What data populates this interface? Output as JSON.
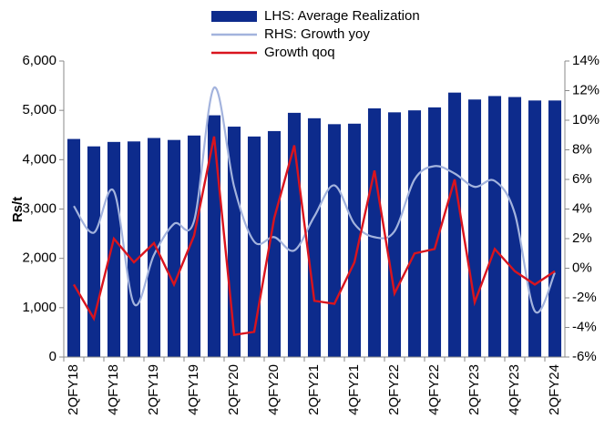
{
  "chart_data": {
    "type": "bar-line",
    "y_label": "Rs/t",
    "categories": [
      "2QFY18",
      null,
      "4QFY18",
      null,
      "2QFY19",
      null,
      "4QFY19",
      null,
      "2QFY20",
      null,
      "4QFY20",
      null,
      "2QFY21",
      null,
      "4QFY21",
      null,
      "2QFY22",
      null,
      "4QFY22",
      null,
      "2QFY23",
      null,
      "4QFY23",
      null,
      "2QFY24"
    ],
    "series": [
      {
        "name": "LHS: Average Realization",
        "type": "bar",
        "color": "#0d2b8c",
        "values": [
          4420,
          4270,
          4360,
          4370,
          4440,
          4400,
          4490,
          4900,
          4670,
          4470,
          4580,
          4950,
          4840,
          4720,
          4730,
          5040,
          4960,
          5000,
          5060,
          5360,
          5220,
          5290,
          5270,
          5200,
          5200
        ]
      },
      {
        "name": "RHS: Growth yoy",
        "type": "line",
        "axis": "y2",
        "color": "#a3b3dd",
        "smooth": true,
        "values": [
          4.2,
          2.4,
          5.2,
          -2.4,
          0.9,
          3.0,
          3.2,
          12.2,
          5.5,
          1.8,
          2.1,
          1.2,
          3.5,
          5.6,
          3.0,
          2.1,
          2.5,
          6.0,
          6.9,
          6.4,
          5.5,
          5.9,
          3.7,
          -2.9,
          -0.3
        ]
      },
      {
        "name": "Growth qoq",
        "type": "line",
        "axis": "y2",
        "color": "#d9141e",
        "smooth": false,
        "values": [
          -1.1,
          -3.4,
          2.0,
          0.4,
          1.7,
          -1.1,
          2.2,
          8.9,
          -4.5,
          -4.3,
          3.4,
          8.3,
          -2.2,
          -2.4,
          0.4,
          6.6,
          -1.7,
          1.0,
          1.3,
          6.0,
          -2.3,
          1.3,
          -0.2,
          -1.1,
          -0.2
        ]
      }
    ],
    "ylim": [
      0,
      6000
    ],
    "yticks": [
      0,
      {
        "value": 1000,
        "label": "1,000"
      },
      {
        "value": 2000,
        "label": "2,000"
      },
      {
        "value": 3000,
        "label": "3,000"
      },
      {
        "value": 4000,
        "label": "4,000"
      },
      {
        "value": 5000,
        "label": "5,000"
      },
      {
        "value": 6000,
        "label": "6,000"
      }
    ],
    "y2lim": [
      -6,
      14
    ],
    "y2ticks": [
      {
        "value": -6,
        "label": "-6%"
      },
      {
        "value": -4,
        "label": "-4%"
      },
      {
        "value": -2,
        "label": "-2%"
      },
      {
        "value": 0,
        "label": "0%"
      },
      {
        "value": 2,
        "label": "2%"
      },
      {
        "value": 4,
        "label": "4%"
      },
      {
        "value": 6,
        "label": "6%"
      },
      {
        "value": 8,
        "label": "8%"
      },
      {
        "value": 10,
        "label": "10%"
      },
      {
        "value": 12,
        "label": "12%"
      },
      {
        "value": 14,
        "label": "14%"
      }
    ],
    "legend": "top"
  }
}
